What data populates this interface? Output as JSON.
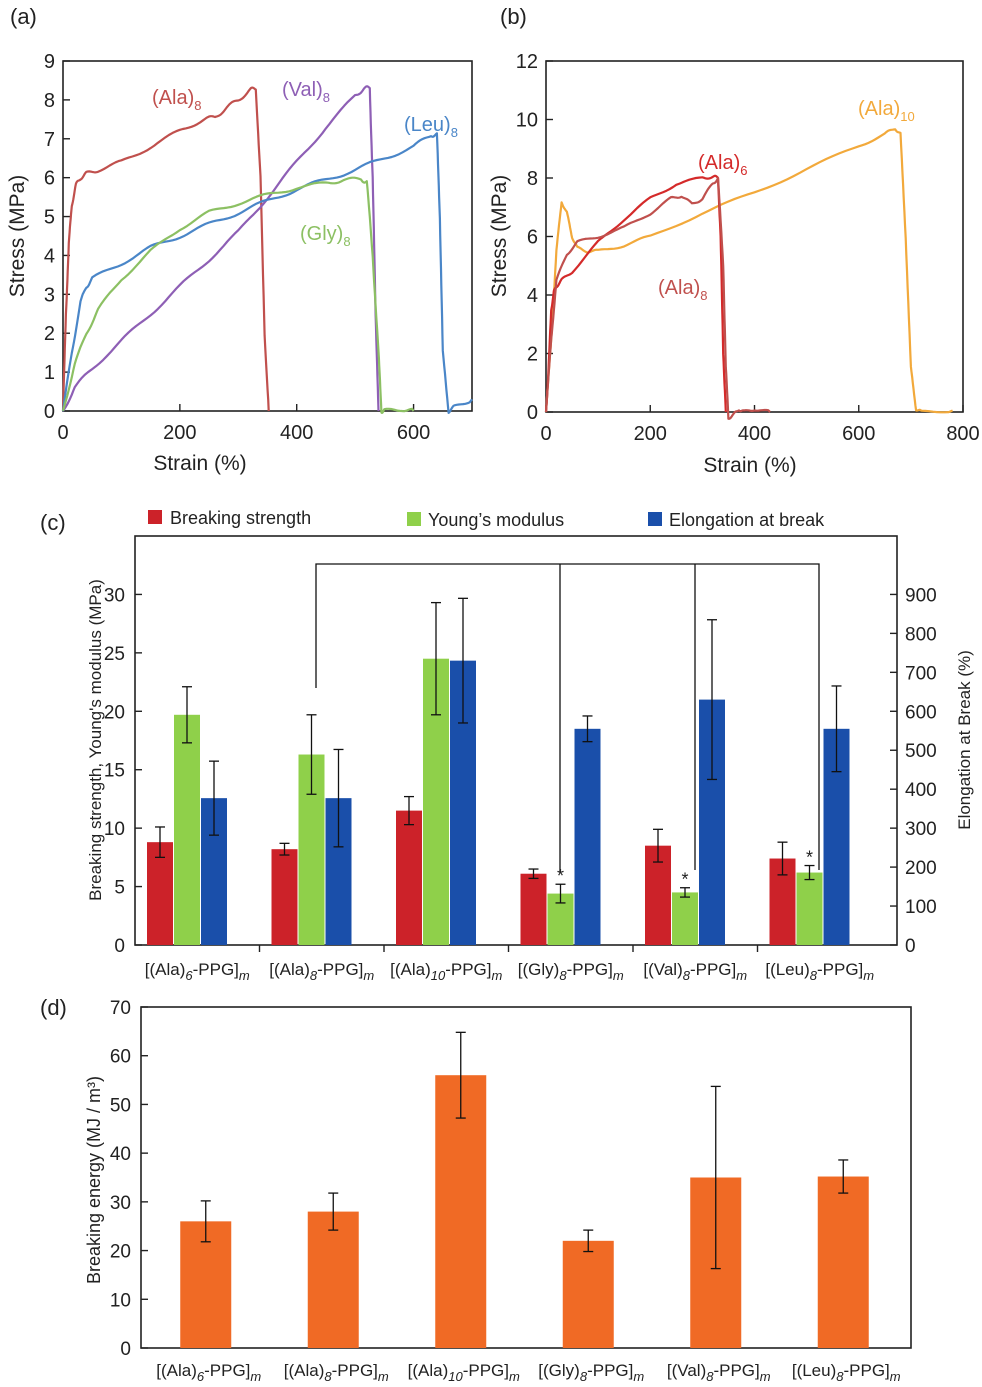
{
  "chart_data": [
    {
      "id": "a",
      "type": "line",
      "panel_label": "(a)",
      "xlabel": "Strain (%)",
      "ylabel": "Stress (MPa)",
      "xlim": [
        0,
        700
      ],
      "ylim": [
        0,
        9
      ],
      "xticks": [
        0,
        200,
        400,
        600
      ],
      "yticks": [
        0,
        1,
        2,
        3,
        4,
        5,
        6,
        7,
        8,
        9
      ],
      "series": [
        {
          "name": "(Ala)8",
          "label_main": "(Ala)",
          "label_sub": "8",
          "color": "#c0504d",
          "x": [
            0,
            5,
            10,
            15,
            22,
            30,
            40,
            60,
            100,
            150,
            200,
            240,
            260,
            280,
            300,
            320,
            330,
            338,
            345,
            352
          ],
          "y": [
            0,
            2.5,
            4.3,
            5.3,
            5.8,
            6.0,
            6.1,
            6.2,
            6.4,
            6.8,
            7.2,
            7.5,
            7.55,
            7.8,
            8.0,
            8.25,
            8.3,
            6.0,
            2.0,
            0
          ]
        },
        {
          "name": "(Val)8",
          "label_main": "(Val)",
          "label_sub": "8",
          "color": "#8e5fb5",
          "x": [
            0,
            20,
            50,
            100,
            150,
            200,
            250,
            300,
            350,
            400,
            450,
            500,
            515,
            525,
            530,
            535,
            540
          ],
          "y": [
            0,
            0.6,
            1.1,
            1.8,
            2.5,
            3.2,
            3.9,
            4.6,
            5.5,
            6.4,
            7.3,
            8.1,
            8.3,
            8.3,
            6.0,
            2.5,
            0
          ]
        },
        {
          "name": "(Leu)8",
          "label_main": "(Leu)",
          "label_sub": "8",
          "color": "#4a86c8",
          "x": [
            0,
            15,
            30,
            40,
            50,
            100,
            150,
            200,
            250,
            300,
            350,
            400,
            450,
            500,
            550,
            600,
            630,
            640,
            645,
            650,
            660,
            670,
            700
          ],
          "y": [
            0,
            1.5,
            2.8,
            3.2,
            3.4,
            3.8,
            4.2,
            4.5,
            4.8,
            5.1,
            5.4,
            5.7,
            5.95,
            6.2,
            6.5,
            6.8,
            7.1,
            7.1,
            5.0,
            1.5,
            0.0,
            0.1,
            0.3
          ]
        },
        {
          "name": "(Gly)8",
          "label_main": "(Gly)",
          "label_sub": "8",
          "color": "#8cc063",
          "x": [
            0,
            20,
            40,
            60,
            100,
            150,
            200,
            250,
            300,
            350,
            400,
            450,
            480,
            510,
            520,
            530,
            540,
            545,
            550,
            580,
            600
          ],
          "y": [
            0,
            1.2,
            2.0,
            2.6,
            3.4,
            4.1,
            4.7,
            5.1,
            5.35,
            5.55,
            5.75,
            5.85,
            5.95,
            5.95,
            5.9,
            4.0,
            1.5,
            0.0,
            0.0,
            0.05,
            0.0
          ]
        }
      ]
    },
    {
      "id": "b",
      "type": "line",
      "panel_label": "(b)",
      "xlabel": "Strain (%)",
      "ylabel": "Stress (MPa)",
      "xlim": [
        0,
        800
      ],
      "ylim": [
        0,
        12
      ],
      "xticks": [
        0,
        200,
        400,
        600,
        800
      ],
      "yticks": [
        0,
        2,
        4,
        6,
        8,
        10,
        12
      ],
      "series": [
        {
          "name": "(Ala)10",
          "label_main": "(Ala)",
          "label_sub": "10",
          "color": "#f2a93b",
          "x": [
            0,
            10,
            20,
            30,
            40,
            50,
            60,
            80,
            100,
            150,
            200,
            300,
            400,
            500,
            600,
            650,
            670,
            680,
            690,
            700,
            710,
            720,
            780
          ],
          "y": [
            0,
            2.5,
            5.5,
            7.2,
            6.8,
            6.0,
            5.6,
            5.5,
            5.5,
            5.7,
            6.0,
            6.8,
            7.5,
            8.3,
            9.1,
            9.5,
            9.7,
            9.5,
            6.0,
            1.5,
            0.1,
            0.0,
            0.05
          ]
        },
        {
          "name": "(Ala)6",
          "label_main": "(Ala)",
          "label_sub": "6",
          "color": "#d42a2a",
          "x": [
            0,
            5,
            10,
            15,
            20,
            30,
            50,
            100,
            150,
            200,
            250,
            300,
            320,
            330,
            335,
            340,
            345
          ],
          "y": [
            0,
            1.5,
            3.5,
            4.1,
            4.3,
            4.5,
            4.8,
            5.8,
            6.6,
            7.3,
            7.8,
            8.0,
            8.05,
            8.0,
            6.0,
            2.0,
            0
          ]
        },
        {
          "name": "(Ala)8",
          "label_main": "(Ala)",
          "label_sub": "8",
          "color": "#c0504d",
          "x": [
            0,
            10,
            20,
            40,
            60,
            100,
            150,
            200,
            240,
            260,
            280,
            300,
            320,
            330,
            340,
            345,
            350,
            360,
            370,
            380,
            400,
            430
          ],
          "y": [
            0,
            2.5,
            4.5,
            5.4,
            5.8,
            6.0,
            6.3,
            6.8,
            7.3,
            7.4,
            7.1,
            7.3,
            7.8,
            8.0,
            5.0,
            1.5,
            -0.2,
            -0.1,
            0.1,
            0.0,
            0.1,
            0.0
          ]
        }
      ]
    },
    {
      "id": "c",
      "type": "bar",
      "panel_label": "(c)",
      "ylabel": "Breaking strength, Young's modulus (MPa)",
      "y2label": "Elongation at Break (%)",
      "ylim": [
        0,
        35
      ],
      "yticks": [
        0,
        5,
        10,
        15,
        20,
        25,
        30
      ],
      "y2lim": [
        0,
        1050
      ],
      "y2ticks": [
        0,
        100,
        200,
        300,
        400,
        500,
        600,
        700,
        800,
        900
      ],
      "categories": [
        {
          "pre": "[(Ala)",
          "sub": "6",
          "mid": "-PPG]",
          "subm": "m"
        },
        {
          "pre": "[(Ala)",
          "sub": "8",
          "mid": "-PPG]",
          "subm": "m"
        },
        {
          "pre": "[(Ala)",
          "sub": "10",
          "mid": "-PPG]",
          "subm": "m"
        },
        {
          "pre": "[(Gly)",
          "sub": "8",
          "mid": "-PPG]",
          "subm": "m"
        },
        {
          "pre": "[(Val)",
          "sub": "8",
          "mid": "-PPG]",
          "subm": "m"
        },
        {
          "pre": "[(Leu)",
          "sub": "8",
          "mid": "-PPG]",
          "subm": "m"
        }
      ],
      "series": [
        {
          "name": "Breaking strength",
          "color": "#cc2229",
          "axis": "left",
          "values": [
            8.8,
            8.2,
            11.5,
            6.1,
            8.5,
            7.4
          ],
          "errors": [
            1.3,
            0.5,
            1.2,
            0.4,
            1.4,
            1.4
          ]
        },
        {
          "name": "Young’s modulus",
          "color": "#8fd04a",
          "axis": "left",
          "values": [
            19.7,
            16.3,
            24.5,
            4.4,
            4.5,
            6.2
          ],
          "errors": [
            2.4,
            3.4,
            4.8,
            0.8,
            0.4,
            0.6
          ]
        },
        {
          "name": "Elongation at break",
          "color": "#1a4faa",
          "axis": "right",
          "values": [
            377,
            377,
            730,
            555,
            630,
            555
          ],
          "errors": [
            95,
            125,
            160,
            33,
            205,
            110
          ]
        }
      ],
      "significance_mark": "*",
      "significance_categories": [
        3,
        4,
        5
      ]
    },
    {
      "id": "d",
      "type": "bar",
      "panel_label": "(d)",
      "ylabel": "Breaking energy (MJ / m³)",
      "ylim": [
        0,
        70
      ],
      "yticks": [
        0,
        10,
        20,
        30,
        40,
        50,
        60,
        70
      ],
      "categories": [
        {
          "pre": "[(Ala)",
          "sub": "6",
          "mid": "-PPG]",
          "subm": "m"
        },
        {
          "pre": "[(Ala)",
          "sub": "8",
          "mid": "-PPG]",
          "subm": "m"
        },
        {
          "pre": "[(Ala)",
          "sub": "10",
          "mid": "-PPG]",
          "subm": "m"
        },
        {
          "pre": "[(Gly)",
          "sub": "8",
          "mid": "-PPG]",
          "subm": "m"
        },
        {
          "pre": "[(Val)",
          "sub": "8",
          "mid": "-PPG]",
          "subm": "m"
        },
        {
          "pre": "[(Leu)",
          "sub": "8",
          "mid": "-PPG]",
          "subm": "m"
        }
      ],
      "series": [
        {
          "name": "Breaking energy",
          "color": "#f06a25",
          "values": [
            26,
            28,
            56,
            22,
            35,
            35.2
          ],
          "errors": [
            4.2,
            3.8,
            8.8,
            2.2,
            18.7,
            3.4
          ]
        }
      ]
    }
  ]
}
